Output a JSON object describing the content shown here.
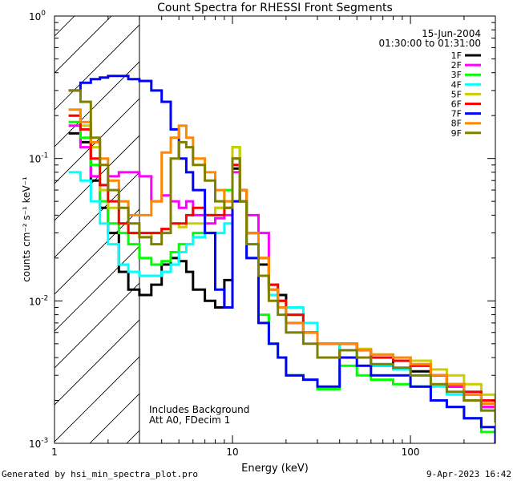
{
  "chart_data": {
    "type": "line",
    "title": "Count Spectra for RHESSI Front Segments",
    "xlabel": "Energy (keV)",
    "ylabel": "counts cm⁻² s⁻¹ keV⁻¹",
    "x_scale": "log",
    "y_scale": "log",
    "xlim": [
      1,
      300
    ],
    "ylim": [
      0.001,
      1
    ],
    "x_ticks": [
      {
        "value": 1,
        "label": "1"
      },
      {
        "value": 10,
        "label": "10"
      },
      {
        "value": 100,
        "label": "100"
      }
    ],
    "y_ticks": [
      {
        "value": 1,
        "base": "10",
        "exp": "0"
      },
      {
        "value": 0.1,
        "base": "10",
        "exp": "-1"
      },
      {
        "value": 0.01,
        "base": "10",
        "exp": "-2"
      },
      {
        "value": 0.001,
        "base": "10",
        "exp": "-3"
      }
    ],
    "date": "15-Jun-2004",
    "time_range": "01:30:00 to 01:31:00",
    "annotation_lines": [
      "Includes Background",
      "Att A0, FDecim 1"
    ],
    "hatched_region_x": [
      1,
      3
    ],
    "series": [
      {
        "name": "1F",
        "color": "#000000",
        "x": [
          1.2,
          1.4,
          1.6,
          1.8,
          2.0,
          2.3,
          2.6,
          3.0,
          3.5,
          4.0,
          4.5,
          5.0,
          5.5,
          6.0,
          7.0,
          8.0,
          9.0,
          10.0,
          11.0,
          12,
          14,
          16,
          18,
          20,
          25,
          30,
          40,
          50,
          60,
          80,
          100,
          130,
          160,
          200,
          250,
          300
        ],
        "y": [
          0.15,
          0.13,
          0.07,
          0.045,
          0.03,
          0.016,
          0.012,
          0.011,
          0.013,
          0.018,
          0.02,
          0.019,
          0.016,
          0.012,
          0.01,
          0.009,
          0.014,
          0.085,
          0.05,
          0.03,
          0.018,
          0.013,
          0.011,
          0.008,
          0.006,
          0.004,
          0.005,
          0.0045,
          0.0035,
          0.004,
          0.0032,
          0.003,
          0.0025,
          0.002,
          0.0018,
          0.0015
        ]
      },
      {
        "name": "2F",
        "color": "#ff00ff",
        "x": [
          1.2,
          1.4,
          1.6,
          1.8,
          2.0,
          2.3,
          2.6,
          3.0,
          3.5,
          4.0,
          4.5,
          5.0,
          5.5,
          6.0,
          7.0,
          8.0,
          9.0,
          10.0,
          11.0,
          12,
          14,
          16,
          18,
          20,
          25,
          30,
          40,
          50,
          60,
          80,
          100,
          130,
          160,
          200,
          250,
          300
        ],
        "y": [
          0.17,
          0.12,
          0.075,
          0.065,
          0.075,
          0.08,
          0.08,
          0.075,
          0.05,
          0.055,
          0.05,
          0.045,
          0.05,
          0.04,
          0.035,
          0.038,
          0.04,
          0.08,
          0.06,
          0.04,
          0.03,
          0.012,
          0.009,
          0.007,
          0.006,
          0.005,
          0.005,
          0.0045,
          0.004,
          0.0038,
          0.0035,
          0.003,
          0.0025,
          0.0022,
          0.0018,
          0.0015
        ]
      },
      {
        "name": "3F",
        "color": "#00ff00",
        "x": [
          1.2,
          1.4,
          1.6,
          1.8,
          2.0,
          2.3,
          2.6,
          3.0,
          3.5,
          4.0,
          4.5,
          5.0,
          5.5,
          6.0,
          7.0,
          8.0,
          9.0,
          10.0,
          11.0,
          12,
          14,
          16,
          18,
          20,
          25,
          30,
          40,
          50,
          60,
          80,
          100,
          130,
          160,
          200,
          250,
          300
        ],
        "y": [
          0.18,
          0.14,
          0.09,
          0.05,
          0.035,
          0.03,
          0.025,
          0.02,
          0.018,
          0.019,
          0.022,
          0.025,
          0.025,
          0.03,
          0.04,
          0.045,
          0.06,
          0.12,
          0.05,
          0.02,
          0.008,
          0.005,
          0.004,
          0.003,
          0.0028,
          0.0024,
          0.0035,
          0.003,
          0.0028,
          0.0026,
          0.0025,
          0.002,
          0.0018,
          0.0015,
          0.0012,
          0.001
        ]
      },
      {
        "name": "4F",
        "color": "#00ffff",
        "x": [
          1.2,
          1.4,
          1.6,
          1.8,
          2.0,
          2.3,
          2.6,
          3.0,
          3.5,
          4.0,
          4.5,
          5.0,
          5.5,
          6.0,
          7.0,
          8.0,
          9.0,
          10.0,
          11.0,
          12,
          14,
          16,
          18,
          20,
          25,
          30,
          40,
          50,
          60,
          80,
          100,
          130,
          160,
          200,
          250,
          300
        ],
        "y": [
          0.08,
          0.07,
          0.05,
          0.035,
          0.025,
          0.018,
          0.016,
          0.015,
          0.015,
          0.016,
          0.018,
          0.022,
          0.025,
          0.028,
          0.03,
          0.03,
          0.035,
          0.1,
          0.05,
          0.025,
          0.015,
          0.011,
          0.01,
          0.009,
          0.007,
          0.005,
          0.0045,
          0.004,
          0.0035,
          0.0033,
          0.003,
          0.0025,
          0.0022,
          0.002,
          0.0017,
          0.0015
        ]
      },
      {
        "name": "5F",
        "color": "#cccc00",
        "x": [
          1.2,
          1.4,
          1.6,
          1.8,
          2.0,
          2.3,
          2.6,
          3.0,
          3.5,
          4.0,
          4.5,
          5.0,
          5.5,
          6.0,
          7.0,
          8.0,
          9.0,
          10.0,
          11.0,
          12,
          14,
          16,
          18,
          20,
          25,
          30,
          40,
          50,
          60,
          80,
          100,
          130,
          160,
          200,
          250,
          300
        ],
        "y": [
          0.2,
          0.17,
          0.12,
          0.06,
          0.045,
          0.035,
          0.03,
          0.028,
          0.03,
          0.032,
          0.035,
          0.033,
          0.035,
          0.035,
          0.04,
          0.045,
          0.05,
          0.12,
          0.06,
          0.03,
          0.02,
          0.013,
          0.01,
          0.008,
          0.006,
          0.005,
          0.005,
          0.0046,
          0.0042,
          0.004,
          0.0038,
          0.0033,
          0.003,
          0.0026,
          0.0022,
          0.0018
        ]
      },
      {
        "name": "6F",
        "color": "#ff0000",
        "x": [
          1.2,
          1.4,
          1.6,
          1.8,
          2.0,
          2.3,
          2.6,
          3.0,
          3.5,
          4.0,
          4.5,
          5.0,
          5.5,
          6.0,
          7.0,
          8.0,
          9.0,
          10.0,
          11.0,
          12,
          14,
          16,
          18,
          20,
          25,
          30,
          40,
          50,
          60,
          80,
          100,
          130,
          160,
          200,
          250,
          300
        ],
        "y": [
          0.2,
          0.16,
          0.1,
          0.065,
          0.05,
          0.035,
          0.03,
          0.03,
          0.03,
          0.032,
          0.035,
          0.035,
          0.04,
          0.045,
          0.04,
          0.04,
          0.045,
          0.09,
          0.05,
          0.03,
          0.02,
          0.013,
          0.01,
          0.008,
          0.006,
          0.005,
          0.005,
          0.0045,
          0.004,
          0.0038,
          0.0035,
          0.003,
          0.0026,
          0.0023,
          0.002,
          0.0016
        ]
      },
      {
        "name": "7F",
        "color": "#0000ff",
        "x": [
          1.2,
          1.4,
          1.6,
          1.8,
          2.0,
          2.3,
          2.6,
          3.0,
          3.5,
          4.0,
          4.5,
          5.0,
          5.5,
          6.0,
          7.0,
          8.0,
          9.0,
          10.0,
          11.0,
          12,
          14,
          16,
          18,
          20,
          25,
          30,
          40,
          50,
          60,
          80,
          100,
          130,
          160,
          200,
          250,
          300
        ],
        "y": [
          0.3,
          0.34,
          0.36,
          0.37,
          0.38,
          0.38,
          0.36,
          0.35,
          0.3,
          0.25,
          0.16,
          0.1,
          0.08,
          0.06,
          0.03,
          0.012,
          0.009,
          0.05,
          0.06,
          0.02,
          0.007,
          0.005,
          0.004,
          0.003,
          0.0028,
          0.0025,
          0.004,
          0.0035,
          0.003,
          0.003,
          0.0025,
          0.002,
          0.0018,
          0.0015,
          0.0013,
          0.001
        ]
      },
      {
        "name": "8F",
        "color": "#ff8800",
        "x": [
          1.2,
          1.4,
          1.6,
          1.8,
          2.0,
          2.3,
          2.6,
          3.0,
          3.5,
          4.0,
          4.5,
          5.0,
          5.5,
          6.0,
          7.0,
          8.0,
          9.0,
          10.0,
          11.0,
          12,
          14,
          16,
          18,
          20,
          25,
          30,
          40,
          50,
          60,
          80,
          100,
          130,
          160,
          200,
          250,
          300
        ],
        "y": [
          0.22,
          0.18,
          0.13,
          0.1,
          0.07,
          0.05,
          0.04,
          0.04,
          0.05,
          0.11,
          0.14,
          0.17,
          0.14,
          0.1,
          0.08,
          0.06,
          0.05,
          0.1,
          0.06,
          0.03,
          0.02,
          0.012,
          0.009,
          0.007,
          0.006,
          0.005,
          0.005,
          0.0045,
          0.0042,
          0.004,
          0.0036,
          0.003,
          0.0026,
          0.0022,
          0.0019,
          0.0016
        ]
      },
      {
        "name": "9F",
        "color": "#808000",
        "x": [
          1.2,
          1.4,
          1.6,
          1.8,
          2.0,
          2.3,
          2.6,
          3.0,
          3.5,
          4.0,
          4.5,
          5.0,
          5.5,
          6.0,
          7.0,
          8.0,
          9.0,
          10.0,
          11.0,
          12,
          14,
          16,
          18,
          20,
          25,
          30,
          40,
          50,
          60,
          80,
          100,
          130,
          160,
          200,
          250,
          300
        ],
        "y": [
          0.3,
          0.25,
          0.14,
          0.09,
          0.06,
          0.045,
          0.035,
          0.028,
          0.025,
          0.03,
          0.1,
          0.13,
          0.12,
          0.09,
          0.07,
          0.05,
          0.045,
          0.1,
          0.05,
          0.025,
          0.015,
          0.01,
          0.008,
          0.006,
          0.005,
          0.004,
          0.0045,
          0.004,
          0.0036,
          0.0034,
          0.003,
          0.0026,
          0.0023,
          0.002,
          0.0017,
          0.0014
        ]
      }
    ]
  },
  "footer": {
    "left": "Generated by hsi_min_spectra_plot.pro",
    "right": "9-Apr-2023 16:42"
  }
}
